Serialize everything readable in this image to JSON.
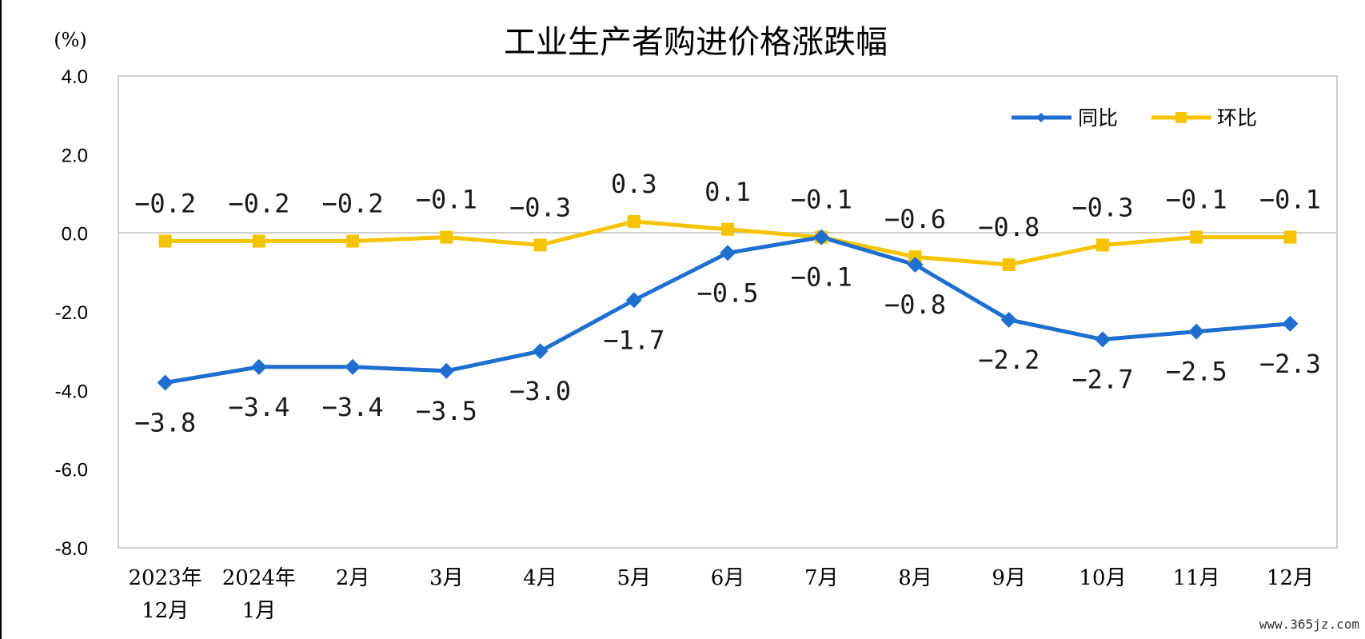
{
  "chart_data": {
    "type": "line",
    "title": "工业生产者购进价格涨跌幅",
    "ylabel": "(%)",
    "ylim": [
      -8.0,
      4.0
    ],
    "yticks": [
      "4.0",
      "2.0",
      "0.0",
      "-2.0",
      "-4.0",
      "-6.0",
      "-8.0"
    ],
    "ytick_values": [
      4,
      2,
      0,
      -2,
      -4,
      -6,
      -8
    ],
    "categories": [
      [
        "2023年",
        "12月"
      ],
      [
        "2024年",
        "1月"
      ],
      [
        "2月"
      ],
      [
        "3月"
      ],
      [
        "4月"
      ],
      [
        "5月"
      ],
      [
        "6月"
      ],
      [
        "7月"
      ],
      [
        "8月"
      ],
      [
        "9月"
      ],
      [
        "10月"
      ],
      [
        "11月"
      ],
      [
        "12月"
      ]
    ],
    "grid": false,
    "zero_line": true,
    "legend_position": "top-right",
    "series": [
      {
        "name": "同比",
        "color": "#1f6fd1",
        "marker": "diamond",
        "values": [
          -3.8,
          -3.4,
          -3.4,
          -3.5,
          -3.0,
          -1.7,
          -0.5,
          -0.1,
          -0.8,
          -2.2,
          -2.7,
          -2.5,
          -2.3
        ],
        "labels": [
          "-3.8",
          "-3.4",
          "-3.4",
          "-3.5",
          "-3.0",
          "-1.7",
          "-0.5",
          "-0.1",
          "-0.8",
          "-2.2",
          "-2.7",
          "-2.5",
          "-2.3"
        ]
      },
      {
        "name": "环比",
        "color": "#f5c400",
        "marker": "square",
        "values": [
          -0.2,
          -0.2,
          -0.2,
          -0.1,
          -0.3,
          0.3,
          0.1,
          -0.1,
          -0.6,
          -0.8,
          -0.3,
          -0.1,
          -0.1
        ],
        "labels": [
          "-0.2",
          "-0.2",
          "-0.2",
          "-0.1",
          "-0.3",
          "0.3",
          "0.1",
          "-0.1",
          "-0.6",
          "-0.8",
          "-0.3",
          "-0.1",
          "-0.1"
        ]
      }
    ]
  },
  "watermark": "www.365jz.com"
}
